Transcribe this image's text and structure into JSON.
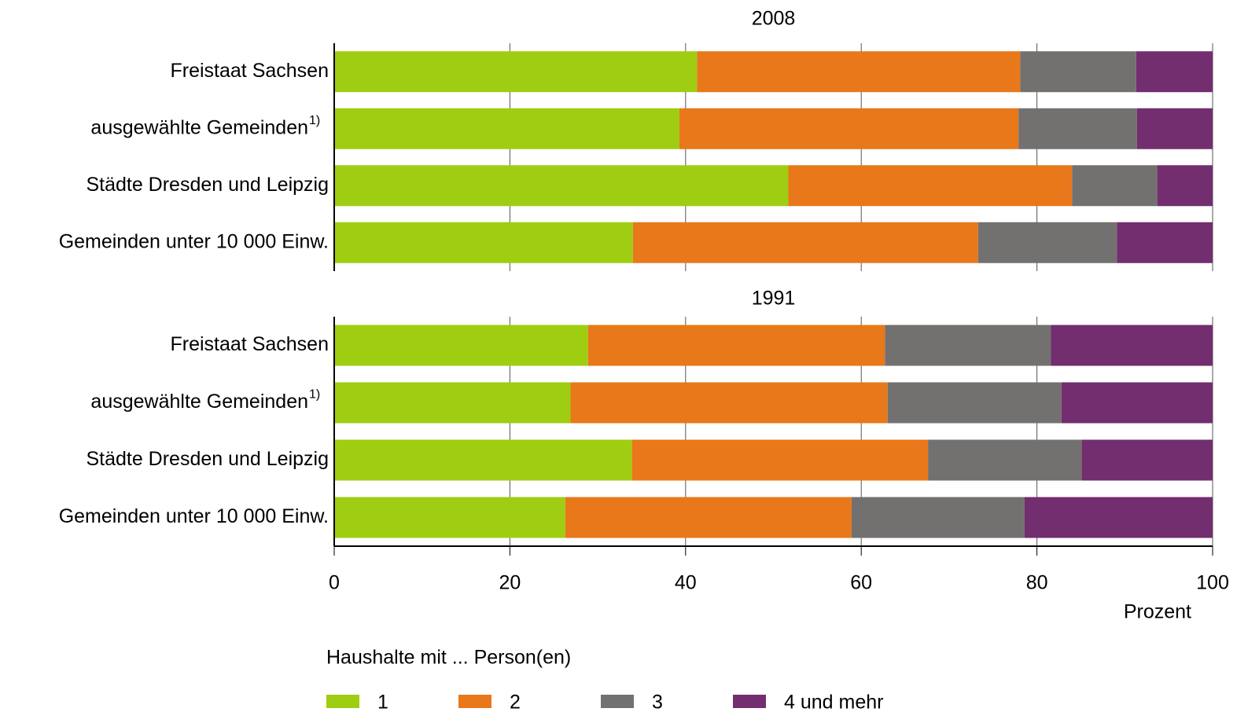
{
  "chart_data": {
    "type": "bar",
    "stacked": true,
    "orientation": "horizontal",
    "panels": [
      {
        "title": "2008",
        "categories": [
          "Freistaat Sachsen",
          "ausgewählte Gemeinden",
          "Städte Dresden und Leipzig",
          "Gemeinden unter 10 000 Einw."
        ],
        "category_notes": [
          null,
          "1)",
          null,
          null
        ]
      },
      {
        "title": "1991",
        "categories": [
          "Freistaat Sachsen",
          "ausgewählte Gemeinden",
          "Städte Dresden und Leipzig",
          "Gemeinden unter 10 000 Einw."
        ],
        "category_notes": [
          null,
          "1)",
          null,
          null
        ]
      }
    ],
    "legend_title": "Haushalte mit ... Person(en)",
    "series": [
      {
        "name": "1",
        "color": "#9fcd11",
        "values": [
          [
            41.3,
            39.3,
            51.7,
            34.0
          ],
          [
            28.9,
            26.9,
            33.9,
            26.3
          ]
        ]
      },
      {
        "name": "2",
        "color": "#e8781a",
        "values": [
          [
            36.8,
            38.6,
            32.3,
            39.3
          ],
          [
            33.8,
            36.1,
            33.7,
            32.6
          ]
        ]
      },
      {
        "name": "3",
        "color": "#737170",
        "values": [
          [
            13.2,
            13.5,
            9.7,
            15.8
          ],
          [
            18.9,
            19.8,
            17.5,
            19.7
          ]
        ]
      },
      {
        "name": "4 und mehr",
        "color": "#722e6e",
        "values": [
          [
            8.7,
            8.6,
            6.3,
            10.9
          ],
          [
            18.4,
            17.2,
            14.9,
            21.4
          ]
        ]
      }
    ],
    "xlabel": "Prozent",
    "xlim": [
      0,
      100
    ],
    "xticks": [
      0,
      20,
      40,
      60,
      80,
      100
    ],
    "grid": true
  }
}
